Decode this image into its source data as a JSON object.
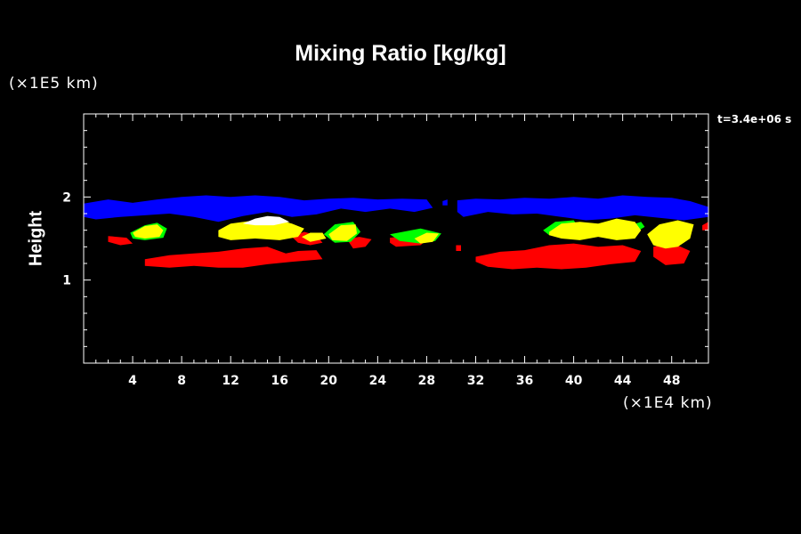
{
  "chart_data": {
    "type": "heatmap",
    "title": "Mixing Ratio [kg/kg]",
    "xlabel": "",
    "ylabel": "Height",
    "x_unit": "(×1E4 km)",
    "y_unit": "(×1E5 km)",
    "timestamp": "t=3.4e+06 s",
    "xlim": [
      0,
      51
    ],
    "ylim": [
      0,
      3
    ],
    "x_ticks": [
      4,
      8,
      12,
      16,
      20,
      24,
      28,
      32,
      36,
      40,
      44,
      48
    ],
    "y_ticks": [
      1,
      2
    ],
    "background": "#000000",
    "series": [
      {
        "color": "#0000ff",
        "regions": [
          [
            [
              0,
              1.92
            ],
            [
              2,
              1.97
            ],
            [
              4,
              1.93
            ],
            [
              6,
              1.97
            ],
            [
              8,
              2.0
            ],
            [
              10,
              2.02
            ],
            [
              12,
              2.0
            ],
            [
              14,
              2.02
            ],
            [
              16,
              2.0
            ],
            [
              18,
              1.96
            ],
            [
              20,
              1.98
            ],
            [
              22,
              1.99
            ],
            [
              24,
              1.97
            ],
            [
              26,
              1.98
            ],
            [
              28,
              1.97
            ],
            [
              28.5,
              1.87
            ],
            [
              27,
              1.82
            ],
            [
              25,
              1.86
            ],
            [
              23,
              1.82
            ],
            [
              21,
              1.86
            ],
            [
              19,
              1.79
            ],
            [
              17,
              1.76
            ],
            [
              15,
              1.82
            ],
            [
              13,
              1.77
            ],
            [
              11,
              1.7
            ],
            [
              9,
              1.76
            ],
            [
              7,
              1.8
            ],
            [
              5,
              1.78
            ],
            [
              3,
              1.76
            ],
            [
              1,
              1.73
            ],
            [
              0,
              1.76
            ]
          ],
          [
            [
              29.3,
              1.95
            ],
            [
              29.7,
              1.97
            ],
            [
              29.7,
              1.9
            ],
            [
              29.3,
              1.9
            ]
          ],
          [
            [
              30.5,
              1.96
            ],
            [
              32,
              1.98
            ],
            [
              34,
              1.97
            ],
            [
              36,
              1.99
            ],
            [
              38,
              1.98
            ],
            [
              40,
              2.0
            ],
            [
              42,
              1.98
            ],
            [
              44,
              2.02
            ],
            [
              46,
              2.0
            ],
            [
              48,
              1.99
            ],
            [
              49.5,
              1.95
            ],
            [
              51,
              1.88
            ],
            [
              51,
              1.76
            ],
            [
              49,
              1.72
            ],
            [
              47,
              1.75
            ],
            [
              45,
              1.78
            ],
            [
              43,
              1.74
            ],
            [
              41,
              1.72
            ],
            [
              39,
              1.76
            ],
            [
              37,
              1.8
            ],
            [
              35,
              1.79
            ],
            [
              33,
              1.82
            ],
            [
              31,
              1.76
            ],
            [
              30.5,
              1.82
            ]
          ]
        ]
      },
      {
        "color": "#ff0000",
        "regions": [
          [
            [
              5,
              1.25
            ],
            [
              7,
              1.3
            ],
            [
              9,
              1.32
            ],
            [
              11,
              1.34
            ],
            [
              13,
              1.38
            ],
            [
              15,
              1.4
            ],
            [
              16.5,
              1.32
            ],
            [
              17.5,
              1.35
            ],
            [
              19,
              1.36
            ],
            [
              19.5,
              1.25
            ],
            [
              17,
              1.22
            ],
            [
              15,
              1.19
            ],
            [
              13,
              1.15
            ],
            [
              11,
              1.15
            ],
            [
              9,
              1.17
            ],
            [
              7,
              1.15
            ],
            [
              5,
              1.17
            ]
          ],
          [
            [
              2,
              1.53
            ],
            [
              3.5,
              1.51
            ],
            [
              4,
              1.44
            ],
            [
              3,
              1.42
            ],
            [
              2,
              1.46
            ]
          ],
          [
            [
              17,
              1.52
            ],
            [
              18,
              1.58
            ],
            [
              19,
              1.54
            ],
            [
              19.5,
              1.45
            ],
            [
              18.5,
              1.42
            ],
            [
              17.5,
              1.45
            ]
          ],
          [
            [
              21.5,
              1.49
            ],
            [
              22.5,
              1.52
            ],
            [
              23.5,
              1.49
            ],
            [
              23,
              1.4
            ],
            [
              22,
              1.38
            ]
          ],
          [
            [
              25,
              1.51
            ],
            [
              26.5,
              1.53
            ],
            [
              28,
              1.48
            ],
            [
              27.5,
              1.42
            ],
            [
              25.5,
              1.4
            ],
            [
              25,
              1.45
            ]
          ],
          [
            [
              32,
              1.28
            ],
            [
              34,
              1.34
            ],
            [
              36,
              1.36
            ],
            [
              38,
              1.42
            ],
            [
              40,
              1.44
            ],
            [
              42,
              1.4
            ],
            [
              44,
              1.42
            ],
            [
              45.5,
              1.35
            ],
            [
              45,
              1.22
            ],
            [
              43,
              1.19
            ],
            [
              41,
              1.15
            ],
            [
              39,
              1.13
            ],
            [
              37,
              1.15
            ],
            [
              35,
              1.13
            ],
            [
              33,
              1.16
            ],
            [
              32,
              1.22
            ]
          ],
          [
            [
              46.5,
              1.4
            ],
            [
              48,
              1.45
            ],
            [
              49.5,
              1.35
            ],
            [
              49,
              1.2
            ],
            [
              47.5,
              1.18
            ],
            [
              46.5,
              1.28
            ]
          ],
          [
            [
              50.5,
              1.66
            ],
            [
              51,
              1.7
            ],
            [
              51,
              1.6
            ],
            [
              50.5,
              1.6
            ]
          ],
          [
            [
              30.4,
              1.42
            ],
            [
              30.8,
              1.42
            ],
            [
              30.8,
              1.35
            ],
            [
              30.4,
              1.35
            ]
          ]
        ]
      },
      {
        "color": "#00ff00",
        "regions": [
          [
            [
              3.8,
              1.57
            ],
            [
              5,
              1.66
            ],
            [
              6,
              1.69
            ],
            [
              6.8,
              1.62
            ],
            [
              6.5,
              1.51
            ],
            [
              5,
              1.48
            ],
            [
              4,
              1.5
            ]
          ],
          [
            [
              19.6,
              1.55
            ],
            [
              20.5,
              1.67
            ],
            [
              22,
              1.7
            ],
            [
              22.6,
              1.58
            ],
            [
              21.8,
              1.46
            ],
            [
              20.5,
              1.45
            ]
          ],
          [
            [
              25,
              1.55
            ],
            [
              27.5,
              1.62
            ],
            [
              29.2,
              1.56
            ],
            [
              28.7,
              1.47
            ],
            [
              27.5,
              1.44
            ],
            [
              25.8,
              1.47
            ]
          ],
          [
            [
              37.5,
              1.6
            ],
            [
              38.5,
              1.7
            ],
            [
              40,
              1.72
            ],
            [
              40.5,
              1.62
            ],
            [
              39.5,
              1.55
            ],
            [
              38,
              1.54
            ]
          ],
          [
            [
              45,
              1.57
            ],
            [
              45.8,
              1.64
            ],
            [
              45.5,
              1.7
            ],
            [
              44.5,
              1.65
            ]
          ]
        ]
      },
      {
        "color": "#ffff00",
        "regions": [
          [
            [
              4,
              1.57
            ],
            [
              5,
              1.65
            ],
            [
              6,
              1.67
            ],
            [
              6.5,
              1.6
            ],
            [
              6.2,
              1.52
            ],
            [
              5,
              1.5
            ],
            [
              4.2,
              1.52
            ]
          ],
          [
            [
              11,
              1.6
            ],
            [
              12,
              1.68
            ],
            [
              14,
              1.72
            ],
            [
              16,
              1.72
            ],
            [
              17,
              1.68
            ],
            [
              18,
              1.62
            ],
            [
              17.5,
              1.52
            ],
            [
              16,
              1.48
            ],
            [
              14,
              1.5
            ],
            [
              12,
              1.48
            ],
            [
              11,
              1.52
            ]
          ],
          [
            [
              17.8,
              1.52
            ],
            [
              18.5,
              1.57
            ],
            [
              19.5,
              1.57
            ],
            [
              19.8,
              1.5
            ],
            [
              18.5,
              1.46
            ]
          ],
          [
            [
              20,
              1.55
            ],
            [
              21,
              1.66
            ],
            [
              22.2,
              1.67
            ],
            [
              22.3,
              1.56
            ],
            [
              21.5,
              1.47
            ],
            [
              20.3,
              1.48
            ]
          ],
          [
            [
              27,
              1.5
            ],
            [
              28,
              1.57
            ],
            [
              29,
              1.56
            ],
            [
              28.5,
              1.46
            ],
            [
              27.5,
              1.44
            ]
          ],
          [
            [
              38,
              1.58
            ],
            [
              39,
              1.68
            ],
            [
              40.5,
              1.7
            ],
            [
              42,
              1.68
            ],
            [
              43.5,
              1.74
            ],
            [
              45,
              1.7
            ],
            [
              45.5,
              1.6
            ],
            [
              45,
              1.5
            ],
            [
              43.5,
              1.48
            ],
            [
              42,
              1.52
            ],
            [
              40.5,
              1.48
            ],
            [
              39,
              1.5
            ],
            [
              38,
              1.54
            ]
          ],
          [
            [
              46,
              1.55
            ],
            [
              47,
              1.67
            ],
            [
              48.5,
              1.72
            ],
            [
              49.8,
              1.67
            ],
            [
              49.5,
              1.5
            ],
            [
              48.5,
              1.4
            ],
            [
              47.5,
              1.38
            ],
            [
              46.5,
              1.42
            ]
          ]
        ]
      },
      {
        "color": "#ffffff",
        "regions": [
          [
            [
              13,
              1.68
            ],
            [
              14,
              1.74
            ],
            [
              15,
              1.77
            ],
            [
              16,
              1.76
            ],
            [
              16.8,
              1.7
            ],
            [
              15.5,
              1.66
            ],
            [
              14,
              1.66
            ]
          ]
        ]
      }
    ]
  }
}
